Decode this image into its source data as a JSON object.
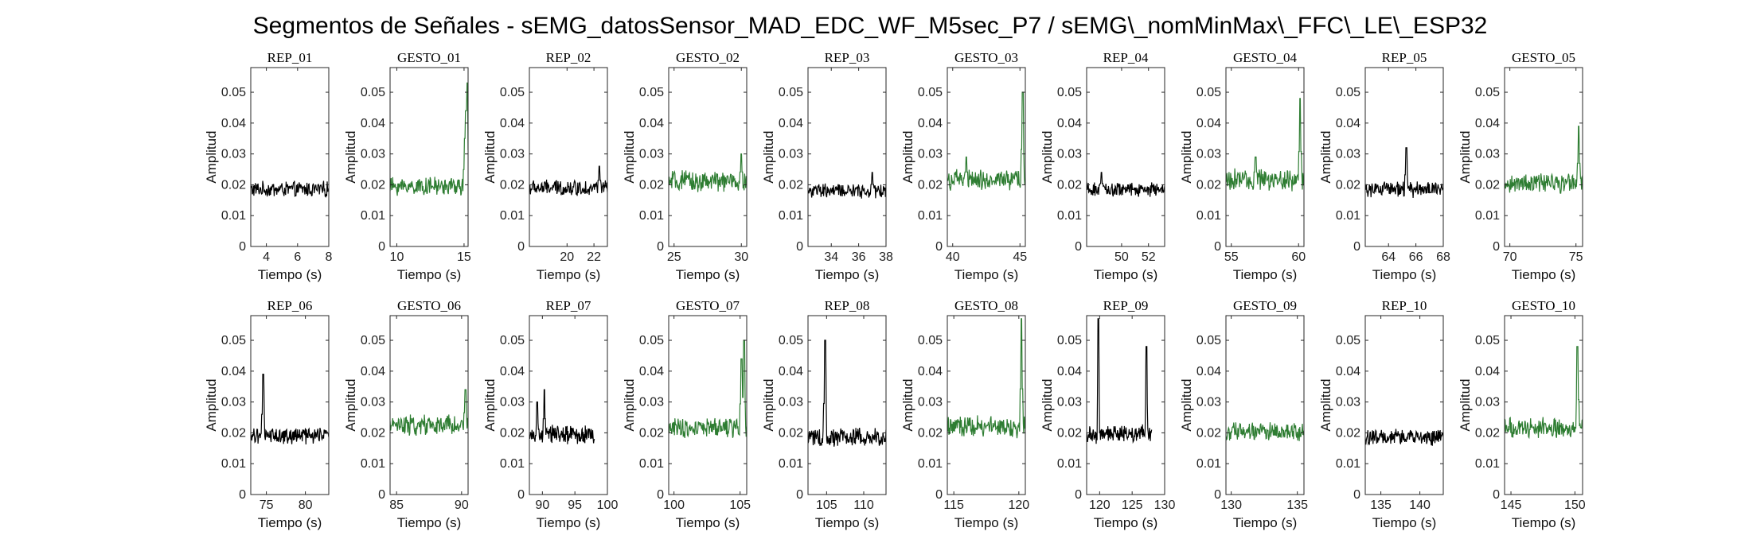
{
  "figure_title": "Segmentos de Señales - sEMG_datosSensor_MAD_EDC_WF_M5sec_P7 / sEMG\\_nomMinMax\\_FFC\\_LE\\_ESP32",
  "colors": {
    "rep": "#000000",
    "gesto": "#2e7d32",
    "axis": "#262626"
  },
  "chart_data": [
    {
      "type": "line",
      "title": "REP_01",
      "xlabel": "Tiempo (s)",
      "ylabel": "Amplitud",
      "xlim": [
        3,
        8
      ],
      "ylim": [
        0,
        0.058
      ],
      "xticks": [
        4,
        6,
        8
      ],
      "yticks": [
        0,
        0.01,
        0.02,
        0.03,
        0.04,
        0.05
      ],
      "color": "#000000",
      "series": [
        {
          "x": [
            3,
            8
          ],
          "baseline": 0.0185,
          "noise": 0.0022,
          "spikes": []
        }
      ]
    },
    {
      "type": "line",
      "title": "GESTO_01",
      "xlabel": "Tiempo (s)",
      "ylabel": "Amplitud",
      "xlim": [
        9.5,
        15.3
      ],
      "ylim": [
        0,
        0.058
      ],
      "xticks": [
        10,
        15
      ],
      "yticks": [
        0,
        0.01,
        0.02,
        0.03,
        0.04,
        0.05
      ],
      "color": "#2e7d32",
      "series": [
        {
          "x": [
            9.5,
            15.3
          ],
          "baseline": 0.0195,
          "noise": 0.0025,
          "spikes": [
            [
              15.05,
              0.035
            ],
            [
              15.15,
              0.044
            ],
            [
              15.25,
              0.053
            ]
          ]
        }
      ]
    },
    {
      "type": "line",
      "title": "REP_02",
      "xlabel": "Tiempo (s)",
      "ylabel": "Amplitud",
      "xlim": [
        17.2,
        23
      ],
      "ylim": [
        0,
        0.058
      ],
      "xticks": [
        20,
        22
      ],
      "yticks": [
        0,
        0.01,
        0.02,
        0.03,
        0.04,
        0.05
      ],
      "color": "#000000",
      "series": [
        {
          "x": [
            17.2,
            23
          ],
          "baseline": 0.019,
          "noise": 0.0022,
          "spikes": [
            [
              22.4,
              0.026
            ]
          ]
        }
      ]
    },
    {
      "type": "line",
      "title": "GESTO_02",
      "xlabel": "Tiempo (s)",
      "ylabel": "Amplitud",
      "xlim": [
        24.6,
        30.4
      ],
      "ylim": [
        0,
        0.058
      ],
      "xticks": [
        25,
        30
      ],
      "yticks": [
        0,
        0.01,
        0.02,
        0.03,
        0.04,
        0.05
      ],
      "color": "#2e7d32",
      "series": [
        {
          "x": [
            24.6,
            30.4
          ],
          "baseline": 0.021,
          "noise": 0.003,
          "spikes": [
            [
              30.0,
              0.03
            ]
          ]
        }
      ]
    },
    {
      "type": "line",
      "title": "REP_03",
      "xlabel": "Tiempo (s)",
      "ylabel": "Amplitud",
      "xlim": [
        32.3,
        38
      ],
      "ylim": [
        0,
        0.058
      ],
      "xticks": [
        34,
        36,
        38
      ],
      "yticks": [
        0,
        0.01,
        0.02,
        0.03,
        0.04,
        0.05
      ],
      "color": "#000000",
      "series": [
        {
          "x": [
            32.3,
            38
          ],
          "baseline": 0.018,
          "noise": 0.002,
          "spikes": [
            [
              37.0,
              0.024
            ]
          ]
        }
      ]
    },
    {
      "type": "line",
      "title": "GESTO_03",
      "xlabel": "Tiempo (s)",
      "ylabel": "Amplitud",
      "xlim": [
        39.6,
        45.4
      ],
      "ylim": [
        0,
        0.058
      ],
      "xticks": [
        40,
        45
      ],
      "yticks": [
        0,
        0.01,
        0.02,
        0.03,
        0.04,
        0.05
      ],
      "color": "#2e7d32",
      "series": [
        {
          "x": [
            39.6,
            45.4
          ],
          "baseline": 0.0215,
          "noise": 0.0028,
          "spikes": [
            [
              41.0,
              0.029
            ],
            [
              45.2,
              0.05
            ]
          ]
        }
      ]
    },
    {
      "type": "line",
      "title": "REP_04",
      "xlabel": "Tiempo (s)",
      "ylabel": "Amplitud",
      "xlim": [
        47.4,
        53.2
      ],
      "ylim": [
        0,
        0.058
      ],
      "xticks": [
        50,
        52
      ],
      "yticks": [
        0,
        0.01,
        0.02,
        0.03,
        0.04,
        0.05
      ],
      "color": "#000000",
      "series": [
        {
          "x": [
            47.4,
            53.2
          ],
          "baseline": 0.0185,
          "noise": 0.002,
          "spikes": [
            [
              48.5,
              0.024
            ]
          ]
        }
      ]
    },
    {
      "type": "line",
      "title": "GESTO_04",
      "xlabel": "Tiempo (s)",
      "ylabel": "Amplitud",
      "xlim": [
        54.6,
        60.4
      ],
      "ylim": [
        0,
        0.058
      ],
      "xticks": [
        55,
        60
      ],
      "yticks": [
        0,
        0.01,
        0.02,
        0.03,
        0.04,
        0.05
      ],
      "color": "#2e7d32",
      "series": [
        {
          "x": [
            54.6,
            60.4
          ],
          "baseline": 0.0215,
          "noise": 0.003,
          "spikes": [
            [
              56.8,
              0.029
            ],
            [
              60.1,
              0.048
            ]
          ]
        }
      ]
    },
    {
      "type": "line",
      "title": "REP_05",
      "xlabel": "Tiempo (s)",
      "ylabel": "Amplitud",
      "xlim": [
        62.3,
        68
      ],
      "ylim": [
        0,
        0.058
      ],
      "xticks": [
        64,
        66,
        68
      ],
      "yticks": [
        0,
        0.01,
        0.02,
        0.03,
        0.04,
        0.05
      ],
      "color": "#000000",
      "series": [
        {
          "x": [
            62.3,
            68
          ],
          "baseline": 0.0185,
          "noise": 0.0022,
          "spikes": [
            [
              65.3,
              0.032
            ]
          ]
        }
      ]
    },
    {
      "type": "line",
      "title": "GESTO_05",
      "xlabel": "Tiempo (s)",
      "ylabel": "Amplitud",
      "xlim": [
        69.6,
        75.5
      ],
      "ylim": [
        0,
        0.058
      ],
      "xticks": [
        70,
        75
      ],
      "yticks": [
        0,
        0.01,
        0.02,
        0.03,
        0.04,
        0.05
      ],
      "color": "#2e7d32",
      "series": [
        {
          "x": [
            69.6,
            75.5
          ],
          "baseline": 0.0205,
          "noise": 0.0026,
          "spikes": [
            [
              75.2,
              0.039
            ]
          ]
        }
      ]
    },
    {
      "type": "line",
      "title": "REP_06",
      "xlabel": "Tiempo (s)",
      "ylabel": "Amplitud",
      "xlim": [
        73,
        83
      ],
      "ylim": [
        0,
        0.058
      ],
      "xticks": [
        75,
        80
      ],
      "yticks": [
        0,
        0.01,
        0.02,
        0.03,
        0.04,
        0.05
      ],
      "color": "#000000",
      "series": [
        {
          "x": [
            73,
            83
          ],
          "baseline": 0.019,
          "noise": 0.0022,
          "spikes": [
            [
              74.6,
              0.039
            ]
          ]
        }
      ]
    },
    {
      "type": "line",
      "title": "GESTO_06",
      "xlabel": "Tiempo (s)",
      "ylabel": "Amplitud",
      "xlim": [
        84.5,
        90.5
      ],
      "ylim": [
        0,
        0.058
      ],
      "xticks": [
        85,
        90
      ],
      "yticks": [
        0,
        0.01,
        0.02,
        0.03,
        0.04,
        0.05
      ],
      "color": "#2e7d32",
      "series": [
        {
          "x": [
            84.5,
            90.5
          ],
          "baseline": 0.0225,
          "noise": 0.003,
          "spikes": [
            [
              90.3,
              0.034
            ]
          ]
        }
      ]
    },
    {
      "type": "line",
      "title": "REP_07",
      "xlabel": "Tiempo (s)",
      "ylabel": "Amplitud",
      "xlim": [
        88,
        100
      ],
      "ylim": [
        0,
        0.058
      ],
      "xticks": [
        90,
        95,
        100
      ],
      "yticks": [
        0,
        0.01,
        0.02,
        0.03,
        0.04,
        0.05
      ],
      "color": "#000000",
      "series": [
        {
          "x": [
            88,
            98
          ],
          "baseline": 0.0195,
          "noise": 0.0025,
          "spikes": [
            [
              89.2,
              0.03
            ],
            [
              90.3,
              0.034
            ]
          ]
        }
      ]
    },
    {
      "type": "line",
      "title": "GESTO_07",
      "xlabel": "Tiempo (s)",
      "ylabel": "Amplitud",
      "xlim": [
        99.6,
        105.5
      ],
      "ylim": [
        0,
        0.058
      ],
      "xticks": [
        100,
        105
      ],
      "yticks": [
        0,
        0.01,
        0.02,
        0.03,
        0.04,
        0.05
      ],
      "color": "#2e7d32",
      "series": [
        {
          "x": [
            99.6,
            105.5
          ],
          "baseline": 0.0215,
          "noise": 0.0028,
          "spikes": [
            [
              105.1,
              0.044
            ],
            [
              105.3,
              0.05
            ]
          ]
        }
      ]
    },
    {
      "type": "line",
      "title": "REP_08",
      "xlabel": "Tiempo (s)",
      "ylabel": "Amplitud",
      "xlim": [
        102.5,
        113
      ],
      "ylim": [
        0,
        0.058
      ],
      "xticks": [
        105,
        110
      ],
      "yticks": [
        0,
        0.01,
        0.02,
        0.03,
        0.04,
        0.05
      ],
      "color": "#000000",
      "series": [
        {
          "x": [
            102.5,
            113
          ],
          "baseline": 0.0185,
          "noise": 0.0025,
          "spikes": [
            [
              104.8,
              0.05
            ]
          ]
        }
      ]
    },
    {
      "type": "line",
      "title": "GESTO_08",
      "xlabel": "Tiempo (s)",
      "ylabel": "Amplitud",
      "xlim": [
        114.5,
        120.5
      ],
      "ylim": [
        0,
        0.058
      ],
      "xticks": [
        115,
        120
      ],
      "yticks": [
        0,
        0.01,
        0.02,
        0.03,
        0.04,
        0.05
      ],
      "color": "#2e7d32",
      "series": [
        {
          "x": [
            114.5,
            120.5
          ],
          "baseline": 0.022,
          "noise": 0.003,
          "spikes": [
            [
              120.2,
              0.057
            ]
          ]
        }
      ]
    },
    {
      "type": "line",
      "title": "REP_09",
      "xlabel": "Tiempo (s)",
      "ylabel": "Amplitud",
      "xlim": [
        118,
        130
      ],
      "ylim": [
        0,
        0.058
      ],
      "xticks": [
        120,
        125,
        130
      ],
      "yticks": [
        0,
        0.01,
        0.02,
        0.03,
        0.04,
        0.05
      ],
      "color": "#000000",
      "series": [
        {
          "x": [
            118,
            128
          ],
          "baseline": 0.0195,
          "noise": 0.0025,
          "spikes": [
            [
              119.8,
              0.057
            ],
            [
              127.2,
              0.048
            ]
          ]
        }
      ]
    },
    {
      "type": "line",
      "title": "GESTO_09",
      "xlabel": "Tiempo (s)",
      "ylabel": "Amplitud",
      "xlim": [
        129.6,
        135.5
      ],
      "ylim": [
        0,
        0.058
      ],
      "xticks": [
        130,
        135
      ],
      "yticks": [
        0,
        0.01,
        0.02,
        0.03,
        0.04,
        0.05
      ],
      "color": "#2e7d32",
      "series": [
        {
          "x": [
            129.6,
            135.5
          ],
          "baseline": 0.0205,
          "noise": 0.0025,
          "spikes": []
        }
      ]
    },
    {
      "type": "line",
      "title": "REP_10",
      "xlabel": "Tiempo (s)",
      "ylabel": "Amplitud",
      "xlim": [
        133,
        143
      ],
      "ylim": [
        0,
        0.058
      ],
      "xticks": [
        135,
        140
      ],
      "yticks": [
        0,
        0.01,
        0.02,
        0.03,
        0.04,
        0.05
      ],
      "color": "#000000",
      "series": [
        {
          "x": [
            133,
            143
          ],
          "baseline": 0.0185,
          "noise": 0.0022,
          "spikes": []
        }
      ]
    },
    {
      "type": "line",
      "title": "GESTO_10",
      "xlabel": "Tiempo (s)",
      "ylabel": "Amplitud",
      "xlim": [
        144.5,
        150.6
      ],
      "ylim": [
        0,
        0.058
      ],
      "xticks": [
        145,
        150
      ],
      "yticks": [
        0,
        0.01,
        0.02,
        0.03,
        0.04,
        0.05
      ],
      "color": "#2e7d32",
      "series": [
        {
          "x": [
            144.5,
            150.6
          ],
          "baseline": 0.0215,
          "noise": 0.0028,
          "spikes": [
            [
              150.2,
              0.048
            ]
          ]
        }
      ]
    }
  ]
}
